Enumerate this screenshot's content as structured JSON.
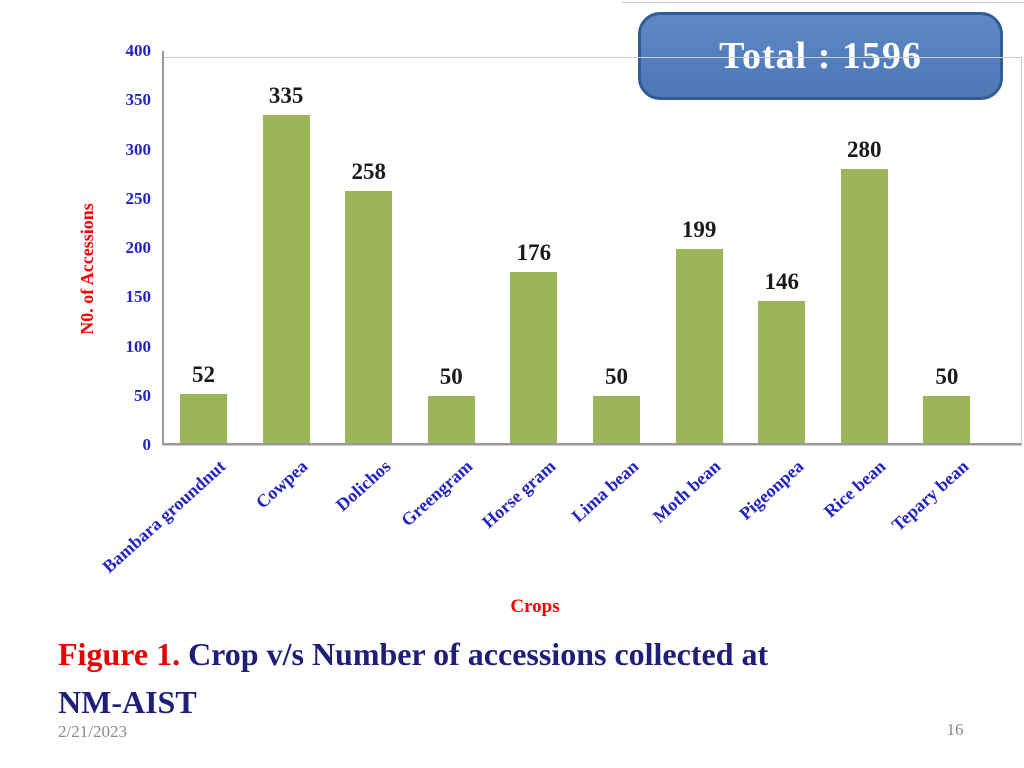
{
  "slide": {
    "total_badge_label": "Total : 1596",
    "caption": {
      "prefix_red": "Figure 1.",
      "line1_rest": " Crop v/s Number of accessions collected at",
      "line2": "NM-AIST"
    },
    "footer_date": "2/21/2023",
    "slide_number": "16"
  },
  "colors": {
    "bar_green": "#9bb55b",
    "badge_fill": "#537fbe",
    "badge_border": "#2f5d94",
    "tick_blue": "#2323c1",
    "axis_title_red": "#fb0000",
    "caption_red": "#e60000",
    "caption_navy": "#1f1f78",
    "value_label_black": "#1a1a1a",
    "axis_line_grey": "#9a9a9a",
    "footer_grey": "#8a8a8a"
  },
  "chart_data": {
    "type": "bar",
    "title": "",
    "categories": [
      "Bambara groundnut",
      "Cowpea",
      "Dolichos",
      "Greengram",
      "Horse gram",
      "Lima bean",
      "Moth bean",
      "Pigeonpea",
      "Rice bean",
      "Tepary bean"
    ],
    "values": [
      52,
      335,
      258,
      50,
      176,
      50,
      199,
      146,
      280,
      50
    ],
    "data_labels": [
      52,
      335,
      258,
      50,
      176,
      50,
      199,
      146,
      280,
      50
    ],
    "xlabel": "Crops",
    "ylabel": "N0. of Accessions",
    "ylim": [
      0,
      400
    ],
    "ytick_step": 50,
    "yticks": [
      0,
      50,
      100,
      150,
      200,
      250,
      300,
      350,
      400
    ],
    "grid": false,
    "legend": "none",
    "bar_color": "#9bb55b",
    "annotation": "Total : 1596"
  }
}
